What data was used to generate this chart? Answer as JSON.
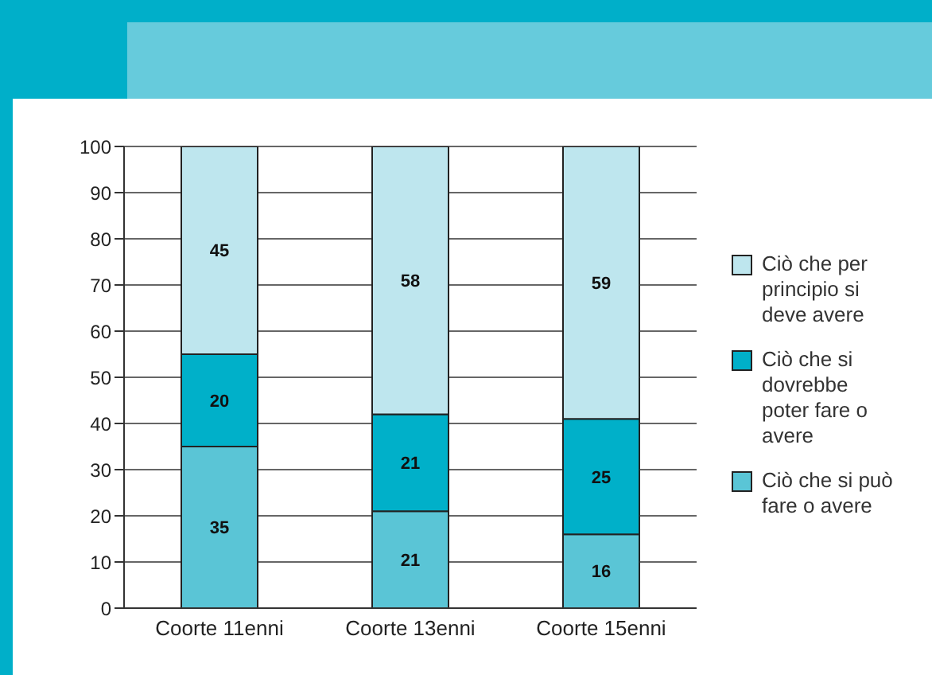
{
  "chart_data": {
    "type": "bar",
    "stacked": true,
    "categories": [
      "Coorte 11enni",
      "Coorte 13enni",
      "Coorte 15enni"
    ],
    "series": [
      {
        "name": "Ciò che si può fare o avere",
        "color": "#5ac5d6",
        "values": [
          35,
          21,
          16
        ]
      },
      {
        "name": "Ciò che si dovrebbe poter fare o avere",
        "color": "#00b0c9",
        "values": [
          20,
          21,
          25
        ]
      },
      {
        "name": "Ciò che per principio si deve avere",
        "color": "#bee6ee",
        "values": [
          45,
          58,
          59
        ]
      }
    ],
    "ylim": [
      0,
      100
    ],
    "yticks": [
      0,
      10,
      20,
      30,
      40,
      50,
      60,
      70,
      80,
      90,
      100
    ],
    "grid": "y",
    "legend": "right",
    "data_labels": true
  }
}
